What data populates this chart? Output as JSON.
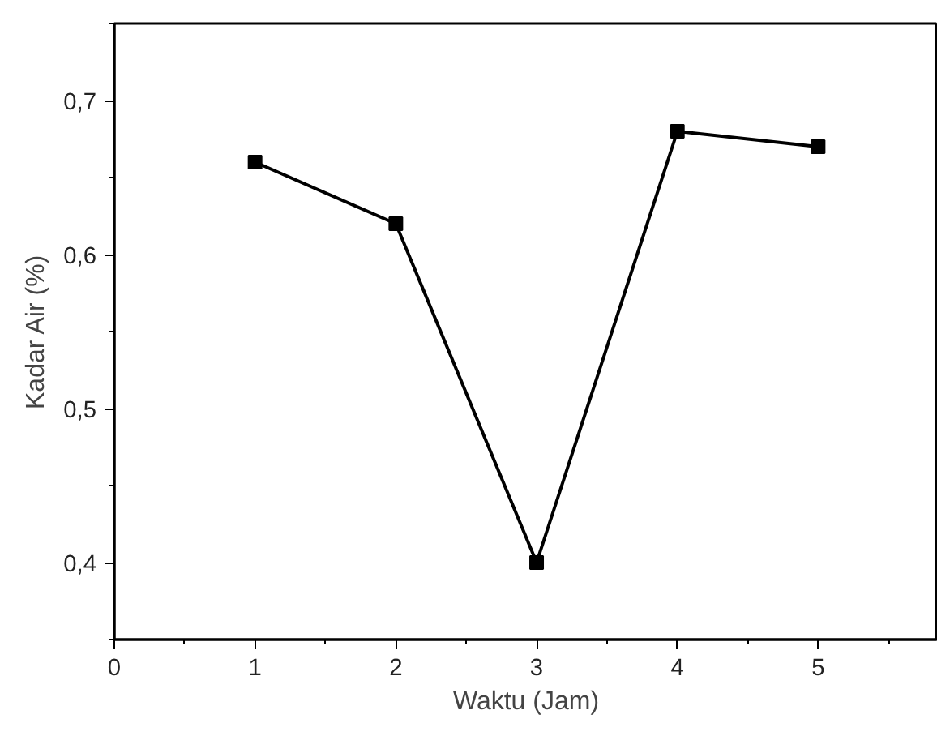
{
  "chart_data": {
    "type": "line",
    "xlabel": "Waktu (Jam)",
    "ylabel": "Kadar Air (%)",
    "x": [
      1,
      2,
      3,
      4,
      5
    ],
    "series": [
      {
        "color": "#000000",
        "values": [
          0.66,
          0.62,
          0.4,
          0.68,
          0.67
        ]
      }
    ],
    "xlim": [
      0,
      5.85
    ],
    "xticks": [
      0,
      1,
      2,
      3,
      4,
      5
    ],
    "ylim": [
      0.35,
      0.75
    ],
    "yticks": [
      {
        "value": 0.4,
        "label": "0,4"
      },
      {
        "value": 0.5,
        "label": "0,5"
      },
      {
        "value": 0.6,
        "label": "0,6"
      },
      {
        "value": 0.7,
        "label": "0,7"
      }
    ],
    "marker": "square",
    "line_style": "solid"
  }
}
